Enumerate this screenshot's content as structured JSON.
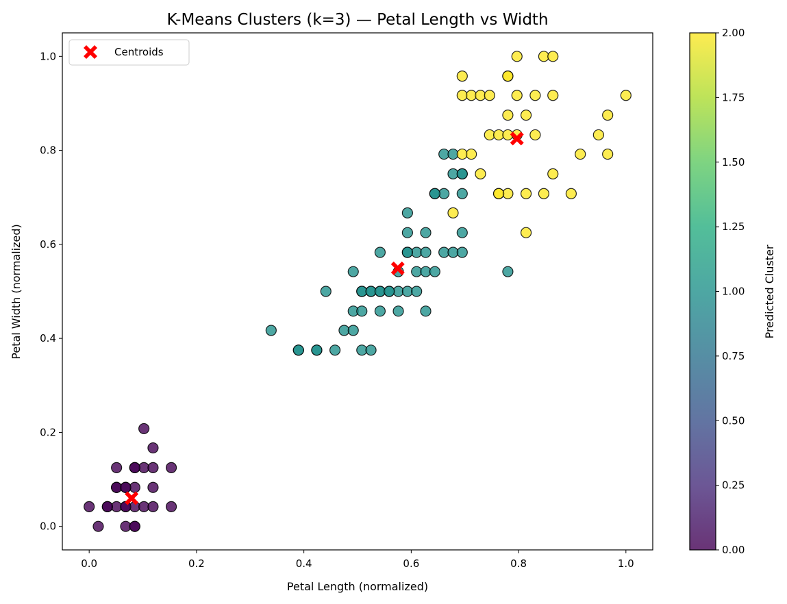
{
  "chart_data": {
    "type": "scatter",
    "title": "K-Means Clusters (k=3) — Petal Length vs Width",
    "xlabel": "Petal Length (normalized)",
    "ylabel": "Petal Width (normalized)",
    "xlim": [
      -0.05,
      1.05
    ],
    "ylim": [
      -0.05,
      1.05
    ],
    "xticks": [
      "0.0",
      "0.2",
      "0.4",
      "0.6",
      "0.8",
      "1.0"
    ],
    "yticks": [
      "0.0",
      "0.2",
      "0.4",
      "0.6",
      "0.8",
      "1.0"
    ],
    "grid": false,
    "legend": {
      "placement": "top-left",
      "entries": [
        "Centroids"
      ]
    },
    "colorbar": {
      "label": "Predicted Cluster",
      "range": [
        0,
        2
      ],
      "ticks": [
        "0.00",
        "0.25",
        "0.50",
        "0.75",
        "1.00",
        "1.25",
        "1.50",
        "1.75",
        "2.00"
      ],
      "colormap": "viridis"
    },
    "series": [
      {
        "cluster": 0,
        "color": "#440154",
        "points": [
          [
            0.0,
            0.042
          ],
          [
            0.017,
            0.0
          ],
          [
            0.034,
            0.042
          ],
          [
            0.051,
            0.042
          ],
          [
            0.051,
            0.083
          ],
          [
            0.051,
            0.125
          ],
          [
            0.068,
            0.0
          ],
          [
            0.068,
            0.042
          ],
          [
            0.068,
            0.083
          ],
          [
            0.085,
            0.0
          ],
          [
            0.085,
            0.042
          ],
          [
            0.085,
            0.083
          ],
          [
            0.085,
            0.125
          ],
          [
            0.102,
            0.042
          ],
          [
            0.102,
            0.125
          ],
          [
            0.102,
            0.208
          ],
          [
            0.119,
            0.042
          ],
          [
            0.119,
            0.083
          ],
          [
            0.119,
            0.125
          ],
          [
            0.119,
            0.167
          ],
          [
            0.153,
            0.042
          ],
          [
            0.153,
            0.125
          ],
          [
            0.034,
            0.042
          ],
          [
            0.068,
            0.042
          ],
          [
            0.085,
            0.0
          ],
          [
            0.051,
            0.083
          ],
          [
            0.085,
            0.125
          ],
          [
            0.068,
            0.083
          ]
        ]
      },
      {
        "cluster": 1,
        "color": "#21918c",
        "points": [
          [
            0.339,
            0.417
          ],
          [
            0.39,
            0.375
          ],
          [
            0.424,
            0.375
          ],
          [
            0.441,
            0.5
          ],
          [
            0.458,
            0.375
          ],
          [
            0.475,
            0.417
          ],
          [
            0.492,
            0.417
          ],
          [
            0.492,
            0.458
          ],
          [
            0.492,
            0.542
          ],
          [
            0.508,
            0.375
          ],
          [
            0.508,
            0.458
          ],
          [
            0.508,
            0.5
          ],
          [
            0.525,
            0.375
          ],
          [
            0.525,
            0.5
          ],
          [
            0.542,
            0.458
          ],
          [
            0.542,
            0.5
          ],
          [
            0.542,
            0.583
          ],
          [
            0.559,
            0.5
          ],
          [
            0.576,
            0.458
          ],
          [
            0.576,
            0.5
          ],
          [
            0.576,
            0.542
          ],
          [
            0.593,
            0.5
          ],
          [
            0.593,
            0.583
          ],
          [
            0.593,
            0.625
          ],
          [
            0.593,
            0.667
          ],
          [
            0.61,
            0.5
          ],
          [
            0.61,
            0.542
          ],
          [
            0.61,
            0.583
          ],
          [
            0.627,
            0.458
          ],
          [
            0.627,
            0.542
          ],
          [
            0.627,
            0.583
          ],
          [
            0.627,
            0.625
          ],
          [
            0.644,
            0.542
          ],
          [
            0.644,
            0.708
          ],
          [
            0.661,
            0.583
          ],
          [
            0.661,
            0.708
          ],
          [
            0.661,
            0.792
          ],
          [
            0.678,
            0.583
          ],
          [
            0.678,
            0.75
          ],
          [
            0.678,
            0.792
          ],
          [
            0.695,
            0.583
          ],
          [
            0.695,
            0.625
          ],
          [
            0.695,
            0.708
          ],
          [
            0.695,
            0.75
          ],
          [
            0.78,
            0.542
          ],
          [
            0.39,
            0.375
          ],
          [
            0.424,
            0.375
          ],
          [
            0.508,
            0.5
          ],
          [
            0.525,
            0.5
          ],
          [
            0.542,
            0.5
          ],
          [
            0.559,
            0.5
          ],
          [
            0.593,
            0.583
          ],
          [
            0.644,
            0.708
          ],
          [
            0.695,
            0.75
          ]
        ]
      },
      {
        "cluster": 2,
        "color": "#fde725",
        "points": [
          [
            0.678,
            0.667
          ],
          [
            0.695,
            0.792
          ],
          [
            0.695,
            0.917
          ],
          [
            0.695,
            0.958
          ],
          [
            0.712,
            0.792
          ],
          [
            0.712,
            0.917
          ],
          [
            0.729,
            0.75
          ],
          [
            0.729,
            0.917
          ],
          [
            0.746,
            0.833
          ],
          [
            0.746,
            0.917
          ],
          [
            0.763,
            0.708
          ],
          [
            0.763,
            0.833
          ],
          [
            0.78,
            0.708
          ],
          [
            0.78,
            0.833
          ],
          [
            0.78,
            0.875
          ],
          [
            0.78,
            0.958
          ],
          [
            0.797,
            0.833
          ],
          [
            0.797,
            0.917
          ],
          [
            0.797,
            1.0
          ],
          [
            0.814,
            0.625
          ],
          [
            0.814,
            0.708
          ],
          [
            0.814,
            0.875
          ],
          [
            0.831,
            0.833
          ],
          [
            0.831,
            0.917
          ],
          [
            0.847,
            0.708
          ],
          [
            0.847,
            1.0
          ],
          [
            0.864,
            0.75
          ],
          [
            0.864,
            0.917
          ],
          [
            0.864,
            1.0
          ],
          [
            0.898,
            0.708
          ],
          [
            0.915,
            0.792
          ],
          [
            0.949,
            0.833
          ],
          [
            0.966,
            0.792
          ],
          [
            0.966,
            0.875
          ],
          [
            1.0,
            0.917
          ],
          [
            0.763,
            0.708
          ],
          [
            0.78,
            0.958
          ]
        ]
      }
    ],
    "centroids": [
      {
        "x": 0.079,
        "y": 0.06
      },
      {
        "x": 0.575,
        "y": 0.549
      },
      {
        "x": 0.797,
        "y": 0.825
      }
    ],
    "centroid_color": "#ff0000"
  }
}
